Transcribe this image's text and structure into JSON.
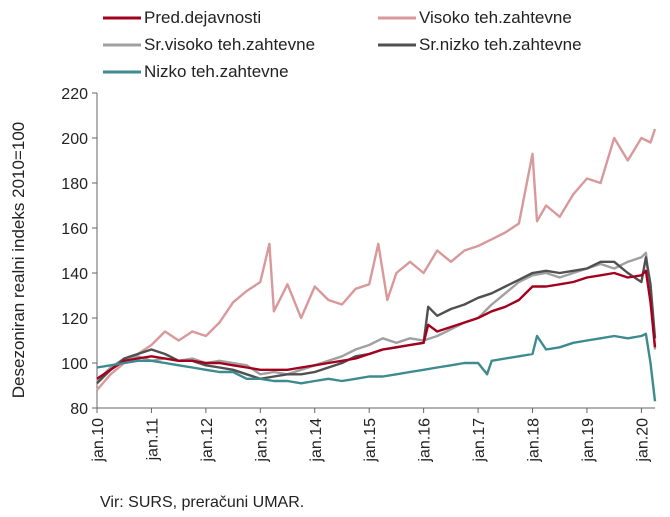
{
  "chart_data": {
    "type": "line",
    "title": "",
    "ylabel": "Desezoniran realni indeks 2010=100",
    "xlabel": "",
    "ylim": [
      80,
      220
    ],
    "yticks": [
      80,
      100,
      120,
      140,
      160,
      180,
      200,
      220
    ],
    "x_range": [
      "2010-01",
      "2020-04"
    ],
    "x_ticks": [
      {
        "label": "jan.10",
        "date": "2010-01"
      },
      {
        "label": "jan.11",
        "date": "2011-01"
      },
      {
        "label": "jan.12",
        "date": "2012-01"
      },
      {
        "label": "jan.13",
        "date": "2013-01"
      },
      {
        "label": "jan.14",
        "date": "2014-01"
      },
      {
        "label": "jan.15",
        "date": "2015-01"
      },
      {
        "label": "jan.16",
        "date": "2016-01"
      },
      {
        "label": "jan.17",
        "date": "2017-01"
      },
      {
        "label": "jan.18",
        "date": "2018-01"
      },
      {
        "label": "jan.19",
        "date": "2019-01"
      },
      {
        "label": "jan.20",
        "date": "2020-01"
      }
    ],
    "grid": false,
    "legend_position": "top",
    "series": [
      {
        "name": "Visoko teh.zahtevne",
        "color": "#d9999b",
        "points": [
          [
            "2010-01",
            88
          ],
          [
            "2010-04",
            95
          ],
          [
            "2010-07",
            100
          ],
          [
            "2010-10",
            104
          ],
          [
            "2011-01",
            108
          ],
          [
            "2011-04",
            114
          ],
          [
            "2011-07",
            110
          ],
          [
            "2011-10",
            114
          ],
          [
            "2012-01",
            112
          ],
          [
            "2012-04",
            118
          ],
          [
            "2012-07",
            127
          ],
          [
            "2012-10",
            132
          ],
          [
            "2013-01",
            136
          ],
          [
            "2013-03",
            153
          ],
          [
            "2013-04",
            123
          ],
          [
            "2013-07",
            135
          ],
          [
            "2013-10",
            120
          ],
          [
            "2014-01",
            134
          ],
          [
            "2014-04",
            128
          ],
          [
            "2014-07",
            126
          ],
          [
            "2014-10",
            133
          ],
          [
            "2015-01",
            135
          ],
          [
            "2015-03",
            153
          ],
          [
            "2015-05",
            128
          ],
          [
            "2015-07",
            140
          ],
          [
            "2015-10",
            145
          ],
          [
            "2016-01",
            140
          ],
          [
            "2016-04",
            150
          ],
          [
            "2016-07",
            145
          ],
          [
            "2016-10",
            150
          ],
          [
            "2017-01",
            152
          ],
          [
            "2017-04",
            155
          ],
          [
            "2017-07",
            158
          ],
          [
            "2017-10",
            162
          ],
          [
            "2018-01",
            193
          ],
          [
            "2018-02",
            163
          ],
          [
            "2018-04",
            170
          ],
          [
            "2018-07",
            165
          ],
          [
            "2018-10",
            175
          ],
          [
            "2019-01",
            182
          ],
          [
            "2019-04",
            180
          ],
          [
            "2019-07",
            200
          ],
          [
            "2019-10",
            190
          ],
          [
            "2020-01",
            200
          ],
          [
            "2020-03",
            198
          ],
          [
            "2020-04",
            204
          ]
        ]
      },
      {
        "name": "Sr.visoko teh.zahtevne",
        "color": "#a0a0a0",
        "points": [
          [
            "2010-01",
            92
          ],
          [
            "2010-04",
            98
          ],
          [
            "2010-07",
            102
          ],
          [
            "2010-10",
            103
          ],
          [
            "2011-01",
            101
          ],
          [
            "2011-04",
            102
          ],
          [
            "2011-07",
            101
          ],
          [
            "2011-10",
            102
          ],
          [
            "2012-01",
            100
          ],
          [
            "2012-04",
            101
          ],
          [
            "2012-07",
            100
          ],
          [
            "2012-10",
            99
          ],
          [
            "2013-01",
            95
          ],
          [
            "2013-04",
            96
          ],
          [
            "2013-07",
            95
          ],
          [
            "2013-10",
            97
          ],
          [
            "2014-01",
            99
          ],
          [
            "2014-04",
            101
          ],
          [
            "2014-07",
            103
          ],
          [
            "2014-10",
            106
          ],
          [
            "2015-01",
            108
          ],
          [
            "2015-04",
            111
          ],
          [
            "2015-07",
            109
          ],
          [
            "2015-10",
            111
          ],
          [
            "2016-01",
            110
          ],
          [
            "2016-04",
            112
          ],
          [
            "2016-07",
            115
          ],
          [
            "2016-10",
            118
          ],
          [
            "2017-01",
            120
          ],
          [
            "2017-04",
            126
          ],
          [
            "2017-07",
            131
          ],
          [
            "2017-10",
            136
          ],
          [
            "2018-01",
            139
          ],
          [
            "2018-04",
            140
          ],
          [
            "2018-07",
            138
          ],
          [
            "2018-10",
            140
          ],
          [
            "2019-01",
            142
          ],
          [
            "2019-04",
            144
          ],
          [
            "2019-07",
            142
          ],
          [
            "2019-10",
            145
          ],
          [
            "2020-01",
            147
          ],
          [
            "2020-02",
            149
          ],
          [
            "2020-03",
            130
          ],
          [
            "2020-04",
            106
          ]
        ]
      },
      {
        "name": "Sr.nizko teh.zahtevne",
        "color": "#505050",
        "points": [
          [
            "2010-01",
            91
          ],
          [
            "2010-04",
            97
          ],
          [
            "2010-07",
            102
          ],
          [
            "2010-10",
            104
          ],
          [
            "2011-01",
            106
          ],
          [
            "2011-04",
            104
          ],
          [
            "2011-07",
            101
          ],
          [
            "2011-10",
            101
          ],
          [
            "2012-01",
            99
          ],
          [
            "2012-04",
            98
          ],
          [
            "2012-07",
            97
          ],
          [
            "2012-10",
            95
          ],
          [
            "2013-01",
            93
          ],
          [
            "2013-04",
            94
          ],
          [
            "2013-07",
            95
          ],
          [
            "2013-10",
            95
          ],
          [
            "2014-01",
            96
          ],
          [
            "2014-04",
            98
          ],
          [
            "2014-07",
            100
          ],
          [
            "2014-10",
            103
          ],
          [
            "2015-01",
            104
          ],
          [
            "2015-04",
            106
          ],
          [
            "2015-07",
            107
          ],
          [
            "2015-10",
            108
          ],
          [
            "2016-01",
            109
          ],
          [
            "2016-02",
            125
          ],
          [
            "2016-04",
            121
          ],
          [
            "2016-07",
            124
          ],
          [
            "2016-10",
            126
          ],
          [
            "2017-01",
            129
          ],
          [
            "2017-04",
            131
          ],
          [
            "2017-07",
            134
          ],
          [
            "2017-10",
            137
          ],
          [
            "2018-01",
            140
          ],
          [
            "2018-04",
            141
          ],
          [
            "2018-07",
            140
          ],
          [
            "2018-10",
            141
          ],
          [
            "2019-01",
            142
          ],
          [
            "2019-04",
            145
          ],
          [
            "2019-07",
            145
          ],
          [
            "2019-10",
            140
          ],
          [
            "2020-01",
            136
          ],
          [
            "2020-02",
            147
          ],
          [
            "2020-03",
            135
          ],
          [
            "2020-04",
            111
          ]
        ]
      },
      {
        "name": "Pred.dejavnosti",
        "color": "#a3001e",
        "points": [
          [
            "2010-01",
            93
          ],
          [
            "2010-04",
            97
          ],
          [
            "2010-07",
            101
          ],
          [
            "2010-10",
            102
          ],
          [
            "2011-01",
            103
          ],
          [
            "2011-04",
            102
          ],
          [
            "2011-07",
            101
          ],
          [
            "2011-10",
            101
          ],
          [
            "2012-01",
            100
          ],
          [
            "2012-04",
            100
          ],
          [
            "2012-07",
            99
          ],
          [
            "2012-10",
            98
          ],
          [
            "2013-01",
            97
          ],
          [
            "2013-04",
            97
          ],
          [
            "2013-07",
            97
          ],
          [
            "2013-10",
            98
          ],
          [
            "2014-01",
            99
          ],
          [
            "2014-04",
            100
          ],
          [
            "2014-07",
            101
          ],
          [
            "2014-10",
            102
          ],
          [
            "2015-01",
            104
          ],
          [
            "2015-04",
            106
          ],
          [
            "2015-07",
            107
          ],
          [
            "2015-10",
            108
          ],
          [
            "2016-01",
            109
          ],
          [
            "2016-02",
            117
          ],
          [
            "2016-04",
            114
          ],
          [
            "2016-07",
            116
          ],
          [
            "2016-10",
            118
          ],
          [
            "2017-01",
            120
          ],
          [
            "2017-04",
            123
          ],
          [
            "2017-07",
            125
          ],
          [
            "2017-10",
            128
          ],
          [
            "2018-01",
            134
          ],
          [
            "2018-04",
            134
          ],
          [
            "2018-07",
            135
          ],
          [
            "2018-10",
            136
          ],
          [
            "2019-01",
            138
          ],
          [
            "2019-04",
            139
          ],
          [
            "2019-07",
            140
          ],
          [
            "2019-10",
            138
          ],
          [
            "2020-01",
            139
          ],
          [
            "2020-02",
            141
          ],
          [
            "2020-03",
            127
          ],
          [
            "2020-04",
            107
          ]
        ]
      },
      {
        "name": "Nizko teh.zahtevne",
        "color": "#3d8a8f",
        "points": [
          [
            "2010-01",
            98
          ],
          [
            "2010-04",
            99
          ],
          [
            "2010-07",
            100
          ],
          [
            "2010-10",
            101
          ],
          [
            "2011-01",
            101
          ],
          [
            "2011-04",
            100
          ],
          [
            "2011-07",
            99
          ],
          [
            "2011-10",
            98
          ],
          [
            "2012-01",
            97
          ],
          [
            "2012-04",
            96
          ],
          [
            "2012-07",
            96
          ],
          [
            "2012-10",
            93
          ],
          [
            "2013-01",
            93
          ],
          [
            "2013-04",
            92
          ],
          [
            "2013-07",
            92
          ],
          [
            "2013-10",
            91
          ],
          [
            "2014-01",
            92
          ],
          [
            "2014-04",
            93
          ],
          [
            "2014-07",
            92
          ],
          [
            "2014-10",
            93
          ],
          [
            "2015-01",
            94
          ],
          [
            "2015-04",
            94
          ],
          [
            "2015-07",
            95
          ],
          [
            "2015-10",
            96
          ],
          [
            "2016-01",
            97
          ],
          [
            "2016-04",
            98
          ],
          [
            "2016-07",
            99
          ],
          [
            "2016-10",
            100
          ],
          [
            "2017-01",
            100
          ],
          [
            "2017-03",
            95
          ],
          [
            "2017-04",
            101
          ],
          [
            "2017-07",
            102
          ],
          [
            "2017-10",
            103
          ],
          [
            "2018-01",
            104
          ],
          [
            "2018-02",
            112
          ],
          [
            "2018-04",
            106
          ],
          [
            "2018-07",
            107
          ],
          [
            "2018-10",
            109
          ],
          [
            "2019-01",
            110
          ],
          [
            "2019-04",
            111
          ],
          [
            "2019-07",
            112
          ],
          [
            "2019-10",
            111
          ],
          [
            "2020-01",
            112
          ],
          [
            "2020-02",
            113
          ],
          [
            "2020-03",
            100
          ],
          [
            "2020-04",
            83
          ]
        ]
      }
    ],
    "legend": [
      {
        "name": "Pred.dejavnosti",
        "color": "#a3001e"
      },
      {
        "name": "Visoko teh.zahtevne",
        "color": "#d9999b"
      },
      {
        "name": "Sr.visoko teh.zahtevne",
        "color": "#a0a0a0"
      },
      {
        "name": "Sr.nizko teh.zahtevne",
        "color": "#505050"
      },
      {
        "name": "Nizko teh.zahtevne",
        "color": "#3d8a8f"
      }
    ]
  },
  "source_note": "Vir: SURS, preračuni UMAR."
}
